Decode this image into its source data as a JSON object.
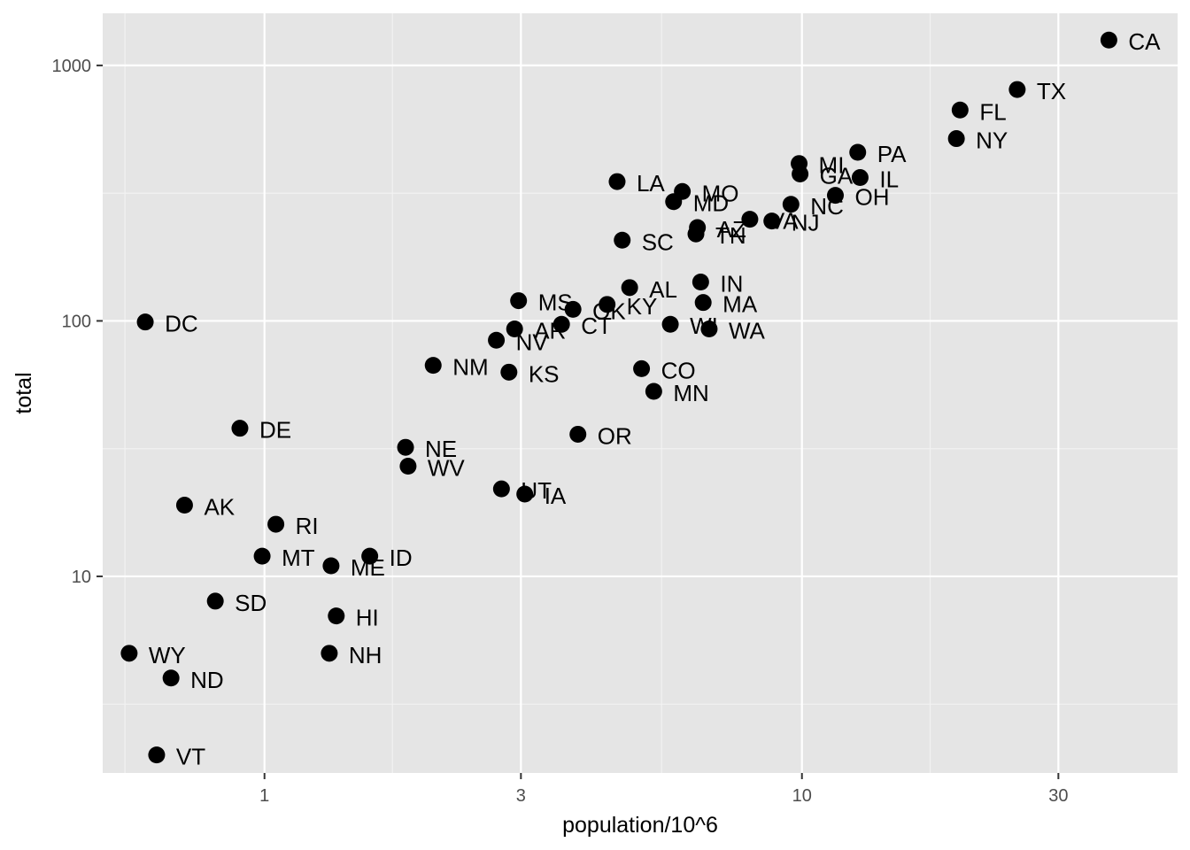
{
  "chart_data": {
    "type": "scatter",
    "xlabel": "population/10^6",
    "ylabel": "total",
    "x_scale": "log10",
    "y_scale": "log10",
    "xlim": [
      0.5,
      50
    ],
    "ylim": [
      1.7,
      1600
    ],
    "x_ticks": [
      1,
      3,
      10,
      30
    ],
    "x_tick_labels": [
      "1",
      "3",
      "10",
      "30"
    ],
    "y_ticks": [
      10,
      100,
      1000
    ],
    "y_tick_labels": [
      "10",
      "100",
      "1000"
    ],
    "x_minor_breaks": [
      0.55,
      1.73,
      5.48,
      17.32
    ],
    "y_minor_breaks": [
      3.16,
      31.6,
      316
    ],
    "grid": true,
    "panel_color": "#e5e5e5",
    "point_color": "#000000",
    "points": [
      {
        "label": "AL",
        "x": 4.78,
        "y": 135
      },
      {
        "label": "AK",
        "x": 0.71,
        "y": 19
      },
      {
        "label": "AZ",
        "x": 6.39,
        "y": 232
      },
      {
        "label": "AR",
        "x": 2.92,
        "y": 93
      },
      {
        "label": "CA",
        "x": 37.25,
        "y": 1257
      },
      {
        "label": "CO",
        "x": 5.03,
        "y": 65
      },
      {
        "label": "CT",
        "x": 3.57,
        "y": 97
      },
      {
        "label": "DE",
        "x": 0.9,
        "y": 38
      },
      {
        "label": "DC",
        "x": 0.6,
        "y": 99
      },
      {
        "label": "FL",
        "x": 19.69,
        "y": 669
      },
      {
        "label": "GA",
        "x": 9.92,
        "y": 376
      },
      {
        "label": "HI",
        "x": 1.36,
        "y": 7
      },
      {
        "label": "ID",
        "x": 1.57,
        "y": 12
      },
      {
        "label": "IL",
        "x": 12.83,
        "y": 364
      },
      {
        "label": "IN",
        "x": 6.48,
        "y": 142
      },
      {
        "label": "IA",
        "x": 3.05,
        "y": 21
      },
      {
        "label": "KS",
        "x": 2.85,
        "y": 63
      },
      {
        "label": "KY",
        "x": 4.34,
        "y": 116
      },
      {
        "label": "LA",
        "x": 4.53,
        "y": 351
      },
      {
        "label": "ME",
        "x": 1.33,
        "y": 11
      },
      {
        "label": "MD",
        "x": 5.77,
        "y": 293
      },
      {
        "label": "MA",
        "x": 6.55,
        "y": 118
      },
      {
        "label": "MI",
        "x": 9.88,
        "y": 413
      },
      {
        "label": "MN",
        "x": 5.3,
        "y": 53
      },
      {
        "label": "MS",
        "x": 2.97,
        "y": 120
      },
      {
        "label": "MO",
        "x": 5.99,
        "y": 321
      },
      {
        "label": "MT",
        "x": 0.99,
        "y": 12
      },
      {
        "label": "NE",
        "x": 1.83,
        "y": 32
      },
      {
        "label": "NV",
        "x": 2.7,
        "y": 84
      },
      {
        "label": "NH",
        "x": 1.32,
        "y": 5
      },
      {
        "label": "NJ",
        "x": 8.79,
        "y": 246
      },
      {
        "label": "NM",
        "x": 2.06,
        "y": 67
      },
      {
        "label": "NY",
        "x": 19.38,
        "y": 517
      },
      {
        "label": "NC",
        "x": 9.54,
        "y": 286
      },
      {
        "label": "ND",
        "x": 0.67,
        "y": 4
      },
      {
        "label": "OH",
        "x": 11.54,
        "y": 310
      },
      {
        "label": "OK",
        "x": 3.75,
        "y": 111
      },
      {
        "label": "OR",
        "x": 3.83,
        "y": 36
      },
      {
        "label": "PA",
        "x": 12.7,
        "y": 457
      },
      {
        "label": "RI",
        "x": 1.05,
        "y": 16
      },
      {
        "label": "SC",
        "x": 4.63,
        "y": 207
      },
      {
        "label": "SD",
        "x": 0.81,
        "y": 8
      },
      {
        "label": "TN",
        "x": 6.35,
        "y": 219
      },
      {
        "label": "TX",
        "x": 25.15,
        "y": 805
      },
      {
        "label": "UT",
        "x": 2.76,
        "y": 22
      },
      {
        "label": "VT",
        "x": 0.63,
        "y": 2
      },
      {
        "label": "VA",
        "x": 8.0,
        "y": 250
      },
      {
        "label": "WA",
        "x": 6.72,
        "y": 93
      },
      {
        "label": "WV",
        "x": 1.85,
        "y": 27
      },
      {
        "label": "WI",
        "x": 5.69,
        "y": 97
      },
      {
        "label": "WY",
        "x": 0.56,
        "y": 5
      }
    ]
  }
}
